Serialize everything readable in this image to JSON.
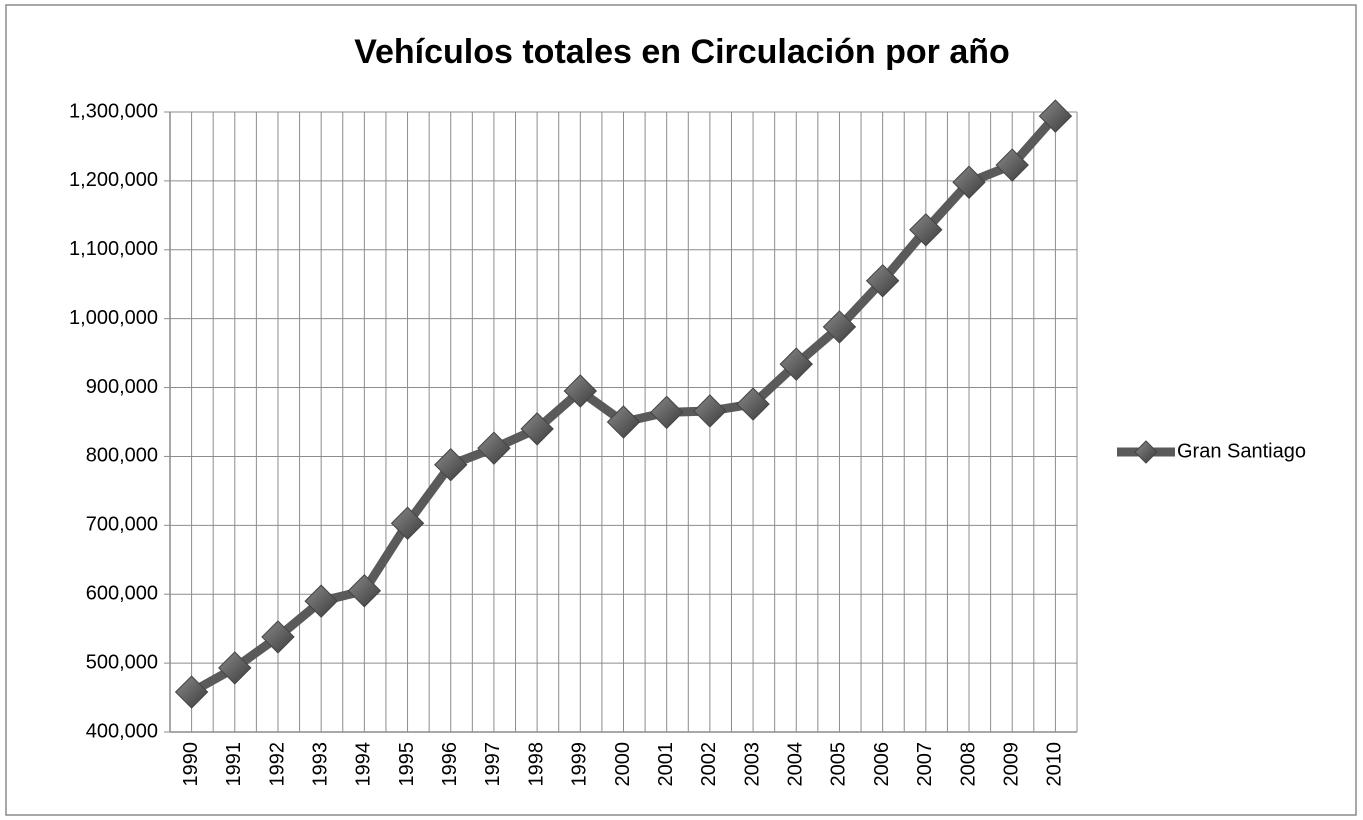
{
  "chart_data": {
    "type": "line",
    "title": "Vehículos totales en Circulación por año",
    "categories": [
      "1990",
      "1991",
      "1992",
      "1993",
      "1994",
      "1995",
      "1996",
      "1997",
      "1998",
      "1999",
      "2000",
      "2001",
      "2002",
      "2003",
      "2004",
      "2005",
      "2006",
      "2007",
      "2008",
      "2009",
      "2010"
    ],
    "series": [
      {
        "name": "Gran Santiago",
        "color": "#5a5a5a",
        "values": [
          458000,
          493000,
          538000,
          590000,
          605000,
          703000,
          788000,
          812000,
          840000,
          895000,
          850000,
          864000,
          866000,
          876000,
          934000,
          988000,
          1055000,
          1129000,
          1198000,
          1223000,
          1294000
        ]
      }
    ],
    "ylim": [
      400000,
      1300000
    ],
    "yticks": [
      {
        "value": 400000,
        "label": "400,000"
      },
      {
        "value": 500000,
        "label": "500,000"
      },
      {
        "value": 600000,
        "label": "600,000"
      },
      {
        "value": 700000,
        "label": "700,000"
      },
      {
        "value": 800000,
        "label": "800,000"
      },
      {
        "value": 900000,
        "label": "900,000"
      },
      {
        "value": 1000000,
        "label": "1,000,000"
      },
      {
        "value": 1100000,
        "label": "1,100,000"
      },
      {
        "value": 1200000,
        "label": "1,200,000"
      },
      {
        "value": 1300000,
        "label": "1,300,000"
      }
    ],
    "grid": true,
    "legend": "right"
  }
}
